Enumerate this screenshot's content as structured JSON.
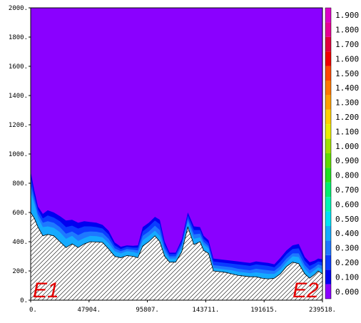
{
  "chart_data": {
    "type": "area",
    "title": "",
    "xlabel": "",
    "ylabel": "",
    "xlim": [
      0,
      239518
    ],
    "ylim": [
      0,
      2000
    ],
    "x_ticks": [
      "0.",
      "47904.",
      "95807.",
      "143711.",
      "191615.",
      "239518."
    ],
    "x_tick_values": [
      0,
      47904,
      95807,
      143711,
      191615,
      239518
    ],
    "y_ticks": [
      "0.",
      "200.",
      "400.",
      "600.",
      "800.",
      "1000.",
      "1200.",
      "1400.",
      "1600.",
      "1800.",
      "2000."
    ],
    "y_tick_values": [
      0,
      200,
      400,
      600,
      800,
      1000,
      1200,
      1400,
      1600,
      1800,
      2000
    ],
    "background_fill": {
      "level": "0.000",
      "color": "#8a00ff"
    },
    "colorbar": {
      "levels": [
        "0.000",
        "0.100",
        "0.200",
        "0.300",
        "0.400",
        "0.500",
        "0.600",
        "0.700",
        "0.800",
        "0.900",
        "1.000",
        "1.100",
        "1.200",
        "1.300",
        "1.400",
        "1.500",
        "1.600",
        "1.700",
        "1.800",
        "1.900"
      ],
      "colors": [
        "#8a00ff",
        "#0000f0",
        "#0a3cff",
        "#1e78ff",
        "#14aaff",
        "#00e1f5",
        "#00f5b4",
        "#00ee6e",
        "#20e020",
        "#60dc00",
        "#a0e000",
        "#e8ee00",
        "#ffd000",
        "#ffa000",
        "#ff7800",
        "#ff4800",
        "#f00000",
        "#e0003c",
        "#e60096",
        "#dc00c8"
      ]
    },
    "terrain": {
      "x": [
        0,
        3000,
        6000,
        10000,
        14000,
        19000,
        24000,
        29000,
        34000,
        39000,
        44000,
        49000,
        54000,
        59000,
        64000,
        69000,
        74000,
        79000,
        84000,
        88000,
        92000,
        97000,
        102000,
        106000,
        110000,
        114000,
        119000,
        124000,
        129000,
        134000,
        139000,
        142000,
        146000,
        150000,
        155000,
        160000,
        165000,
        170000,
        175000,
        180000,
        185000,
        190000,
        195000,
        200000,
        205000,
        210000,
        215000,
        220000,
        225000,
        229000,
        233000,
        236000,
        239518
      ],
      "y": [
        600,
        560,
        500,
        440,
        450,
        440,
        400,
        360,
        385,
        360,
        385,
        400,
        398,
        395,
        350,
        300,
        290,
        305,
        300,
        290,
        370,
        400,
        440,
        400,
        300,
        260,
        260,
        330,
        500,
        380,
        400,
        340,
        320,
        200,
        195,
        190,
        180,
        170,
        165,
        160,
        160,
        150,
        145,
        150,
        180,
        230,
        260,
        250,
        180,
        150,
        175,
        200,
        180
      ]
    },
    "contours": [
      {
        "level": "0.400",
        "y": [
          740,
          660,
          565,
          500,
          505,
          495,
          465,
          420,
          440,
          405,
          425,
          440,
          438,
          430,
          390,
          335,
          320,
          335,
          330,
          320,
          410,
          440,
          475,
          440,
          330,
          285,
          285,
          360,
          535,
          420,
          430,
          380,
          355,
          220,
          215,
          210,
          205,
          195,
          190,
          185,
          190,
          185,
          180,
          180,
          210,
          260,
          300,
          295,
          215,
          180,
          205,
          225,
          210
        ]
      },
      {
        "level": "0.300",
        "y": [
          790,
          690,
          590,
          530,
          540,
          530,
          500,
          455,
          470,
          445,
          465,
          470,
          468,
          460,
          420,
          355,
          335,
          350,
          345,
          340,
          440,
          470,
          510,
          480,
          355,
          300,
          300,
          380,
          555,
          450,
          455,
          400,
          370,
          240,
          235,
          230,
          225,
          215,
          210,
          205,
          215,
          210,
          205,
          200,
          235,
          285,
          320,
          320,
          240,
          205,
          225,
          245,
          235
        ]
      },
      {
        "level": "0.200",
        "y": [
          840,
          720,
          620,
          560,
          580,
          565,
          540,
          500,
          510,
          490,
          505,
          505,
          500,
          490,
          450,
          375,
          350,
          365,
          360,
          360,
          470,
          505,
          545,
          520,
          380,
          315,
          315,
          400,
          580,
          480,
          480,
          420,
          390,
          265,
          260,
          255,
          250,
          245,
          240,
          235,
          245,
          240,
          235,
          225,
          265,
          315,
          350,
          355,
          270,
          235,
          250,
          265,
          260
        ]
      },
      {
        "level": "0.100",
        "y": [
          880,
          750,
          640,
          590,
          615,
          600,
          575,
          545,
          550,
          530,
          540,
          535,
          530,
          515,
          475,
          395,
          365,
          375,
          372,
          375,
          500,
          530,
          570,
          550,
          400,
          325,
          325,
          415,
          600,
          505,
          500,
          440,
          410,
          285,
          280,
          275,
          270,
          265,
          260,
          255,
          265,
          260,
          255,
          245,
          290,
          340,
          375,
          385,
          295,
          260,
          270,
          285,
          280
        ]
      }
    ],
    "annotations": [
      "E1",
      "E2"
    ]
  }
}
